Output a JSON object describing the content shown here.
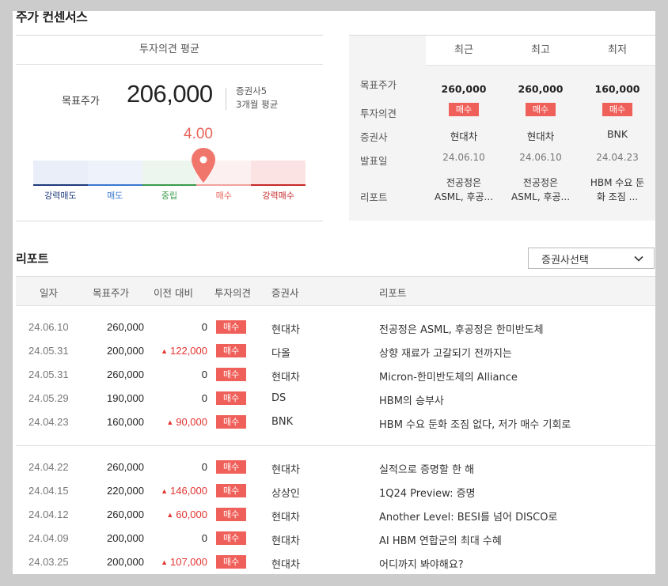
{
  "section_title": "주가 컨센서스",
  "consensus": {
    "avg_title": "투자의견 평균",
    "target_label": "목표주가",
    "target_value": "206,000",
    "brokers": "증권사5",
    "period": "3개월 평균",
    "score": "4.00",
    "score_fraction": 0.625,
    "scale_labels": [
      "강력매도",
      "매도",
      "중립",
      "매수",
      "강력매수"
    ]
  },
  "compare": {
    "columns": [
      "최근",
      "최고",
      "최저"
    ],
    "row_labels": [
      "목표주가",
      "투자의견",
      "증권사",
      "발표일",
      "리포트"
    ],
    "data": [
      {
        "price": "260,000",
        "opinion": "매수",
        "broker": "현대차",
        "date": "24.06.10",
        "report_line1": "전공정은",
        "report_line2": "ASML, 후공..."
      },
      {
        "price": "260,000",
        "opinion": "매수",
        "broker": "현대차",
        "date": "24.06.10",
        "report_line1": "전공정은",
        "report_line2": "ASML, 후공..."
      },
      {
        "price": "160,000",
        "opinion": "매수",
        "broker": "BNK",
        "date": "24.04.23",
        "report_line1": "HBM 수요 둔",
        "report_line2": "화 조짐 ..."
      }
    ]
  },
  "reports": {
    "title": "리포트",
    "select_label": "증권사선택",
    "headers": [
      "일자",
      "목표주가",
      "이전 대비",
      "투자의견",
      "증권사",
      "리포트"
    ],
    "rows": [
      {
        "date": "24.06.10",
        "price": "260,000",
        "change": "0",
        "up": false,
        "opinion": "매수",
        "broker": "현대차",
        "title": "전공정은 ASML, 후공정은 한미반도체"
      },
      {
        "date": "24.05.31",
        "price": "200,000",
        "change": "122,000",
        "up": true,
        "opinion": "매수",
        "broker": "다올",
        "title": "상향 재료가 고갈되기 전까지는"
      },
      {
        "date": "24.05.31",
        "price": "260,000",
        "change": "0",
        "up": false,
        "opinion": "매수",
        "broker": "현대차",
        "title": "Micron-한미반도체의 Alliance"
      },
      {
        "date": "24.05.29",
        "price": "190,000",
        "change": "0",
        "up": false,
        "opinion": "매수",
        "broker": "DS",
        "title": "HBM의 승부사"
      },
      {
        "date": "24.04.23",
        "price": "160,000",
        "change": "90,000",
        "up": true,
        "opinion": "매수",
        "broker": "BNK",
        "title": "HBM 수요 둔화 조짐 없다, 저가 매수 기회로"
      },
      {
        "date": "24.04.22",
        "price": "260,000",
        "change": "0",
        "up": false,
        "opinion": "매수",
        "broker": "현대차",
        "title": "실적으로 증명할 한 해"
      },
      {
        "date": "24.04.15",
        "price": "220,000",
        "change": "146,000",
        "up": true,
        "opinion": "매수",
        "broker": "상상인",
        "title": "1Q24 Preview: 증명"
      },
      {
        "date": "24.04.12",
        "price": "260,000",
        "change": "60,000",
        "up": true,
        "opinion": "매수",
        "broker": "현대차",
        "title": "Another Level: BESI를 넘어 DISCO로"
      },
      {
        "date": "24.04.09",
        "price": "200,000",
        "change": "0",
        "up": false,
        "opinion": "매수",
        "broker": "현대차",
        "title": "AI HBM 연합군의 최대 수혜"
      },
      {
        "date": "24.03.25",
        "price": "200,000",
        "change": "107,000",
        "up": true,
        "opinion": "매수",
        "broker": "현대차",
        "title": "어디까지 봐야해요?"
      }
    ]
  },
  "colors": {
    "accent": "#f0605a",
    "up": "#e2332f"
  }
}
